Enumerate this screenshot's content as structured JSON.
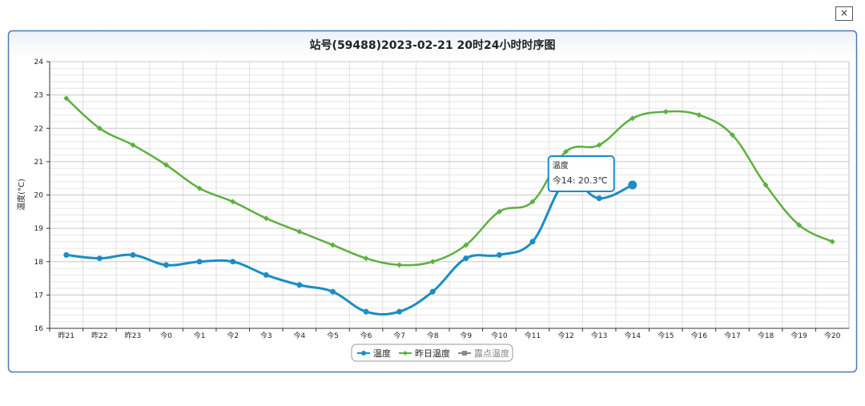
{
  "chart_data": {
    "type": "line",
    "title": "站号(59488)2023-02-21 20时24小时时序图",
    "y_label": "温度(°C)",
    "categories": [
      "昨21",
      "昨22",
      "昨23",
      "今0",
      "今1",
      "今2",
      "今3",
      "今4",
      "今5",
      "今6",
      "今7",
      "今8",
      "今9",
      "今10",
      "今11",
      "今12",
      "今13",
      "今14",
      "今15",
      "今16",
      "今17",
      "今18",
      "今19",
      "今20"
    ],
    "series": [
      {
        "name": "温度",
        "color": "#1b8dc4",
        "marker": "circle",
        "values": [
          18.2,
          18.1,
          18.2,
          17.9,
          18.0,
          18.0,
          17.6,
          17.3,
          17.1,
          16.5,
          16.5,
          17.1,
          18.1,
          18.2,
          18.6,
          20.4,
          19.9,
          20.3,
          null,
          null,
          null,
          null,
          null,
          null
        ]
      },
      {
        "name": "昨日温度",
        "color": "#5cb03f",
        "marker": "diamond",
        "values": [
          22.9,
          22.0,
          21.5,
          20.9,
          20.2,
          19.8,
          19.3,
          18.9,
          18.5,
          18.1,
          17.9,
          18.0,
          18.5,
          19.5,
          19.8,
          21.3,
          21.5,
          22.3,
          22.5,
          22.4,
          21.8,
          20.3,
          19.1,
          18.6
        ]
      },
      {
        "name": "露点温度",
        "color": "#888888",
        "marker": "square",
        "values": [
          null,
          null,
          null,
          null,
          null,
          null,
          null,
          null,
          null,
          null,
          null,
          null,
          null,
          null,
          null,
          null,
          null,
          null,
          null,
          null,
          null,
          null,
          null,
          null
        ]
      }
    ],
    "ylim": [
      16,
      24
    ],
    "yticks": [
      16,
      17,
      18,
      19,
      20,
      21,
      22,
      23,
      24
    ],
    "grid": true,
    "tooltip": {
      "series": 0,
      "index": 17,
      "title": "温度",
      "text": "今14: 20.3℃"
    }
  }
}
